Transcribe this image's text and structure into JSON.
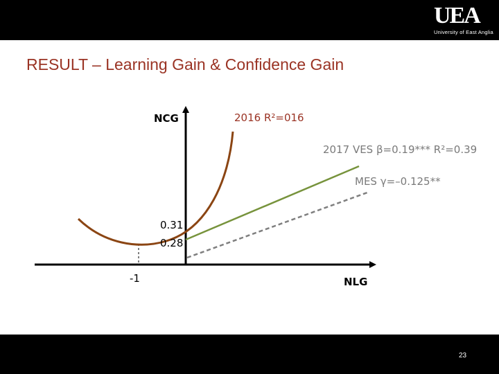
{
  "slide": {
    "title": "RESULT –  Learning Gain & Confidence Gain",
    "page_number": "23"
  },
  "logo": {
    "letters": "UEA",
    "subtitle": "University of East Anglia"
  },
  "diagram": {
    "y_axis_label": "NCG",
    "x_axis_label": "NLG",
    "annotation_2016": "2016  R²=016",
    "annotation_2017": "2017 VES  β=0.19***  R²=0.39",
    "annotation_mes": "MES γ=–0.125**",
    "value_031": "0.31",
    "value_028": "0.28",
    "value_minus1": "-1",
    "colors": {
      "curve_2016": "#8b4513",
      "line_ves": "#77933c",
      "line_mes": "#7f7f7f",
      "title": "#9a3324"
    }
  }
}
